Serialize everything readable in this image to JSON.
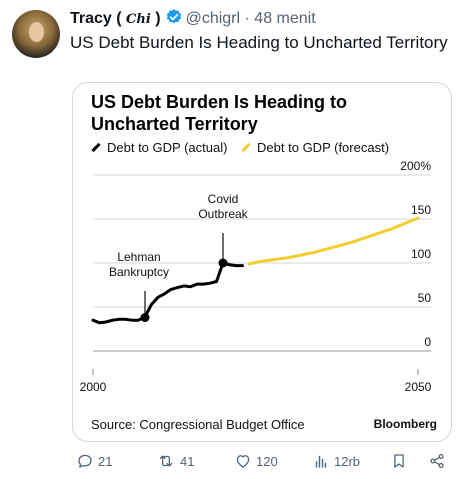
{
  "tweet": {
    "author_name": "Tracy (",
    "author_glyph": "Chi",
    "author_close": ")",
    "handle": "@chigrl",
    "separator": "·",
    "time": "48 menit",
    "text": "US Debt Burden Is Heading to Uncharted Territory"
  },
  "card": {
    "source": "Source: Congressional Budget Office",
    "brand": "Bloomberg"
  },
  "chart_data": {
    "type": "line",
    "title": "US Debt Burden Is Heading to Uncharted Territory",
    "legend_position": "top-left",
    "grid": "horizontal",
    "xlim": [
      2000,
      2052
    ],
    "ylim": [
      0,
      200
    ],
    "xticks": [
      2000,
      2050
    ],
    "yticks": [
      0,
      50,
      100,
      150,
      200
    ],
    "ytick_labels": [
      "0",
      "50",
      "100",
      "150",
      "200%"
    ],
    "series": [
      {
        "name": "Debt to GDP (actual)",
        "color": "#000000",
        "x": [
          2000,
          2001,
          2002,
          2003,
          2004,
          2005,
          2006,
          2007,
          2008,
          2009,
          2010,
          2011,
          2012,
          2013,
          2014,
          2015,
          2016,
          2017,
          2018,
          2019,
          2020,
          2021,
          2022,
          2023
        ],
        "y": [
          35,
          32,
          33,
          35,
          36,
          36,
          35,
          35,
          39,
          53,
          61,
          65,
          70,
          72,
          74,
          73,
          76,
          76,
          77,
          79,
          100,
          98,
          97,
          97
        ]
      },
      {
        "name": "Debt to GDP (forecast)",
        "color": "#f2cd2e",
        "x": [
          2024,
          2026,
          2028,
          2030,
          2032,
          2034,
          2036,
          2038,
          2040,
          2042,
          2044,
          2046,
          2048,
          2050
        ],
        "y": [
          99,
          102,
          104,
          106,
          109,
          112,
          116,
          120,
          124,
          129,
          134,
          139,
          145,
          151
        ]
      }
    ],
    "annotations": [
      {
        "label": "Lehman Bankruptcy",
        "lines": [
          "Lehman",
          "Bankruptcy"
        ],
        "x": 2008,
        "y": 38
      },
      {
        "label": "Covid Outbreak",
        "lines": [
          "Covid",
          "Outbreak"
        ],
        "x": 2020,
        "y": 100
      }
    ]
  },
  "engagement": {
    "replies": "21",
    "reposts": "41",
    "likes": "120",
    "views": "12rb"
  },
  "colors": {
    "text": "#0f1419",
    "muted": "#536471",
    "verified": "#1d9bf0",
    "forecast": "#f2cd2e",
    "actual": "#000000"
  }
}
